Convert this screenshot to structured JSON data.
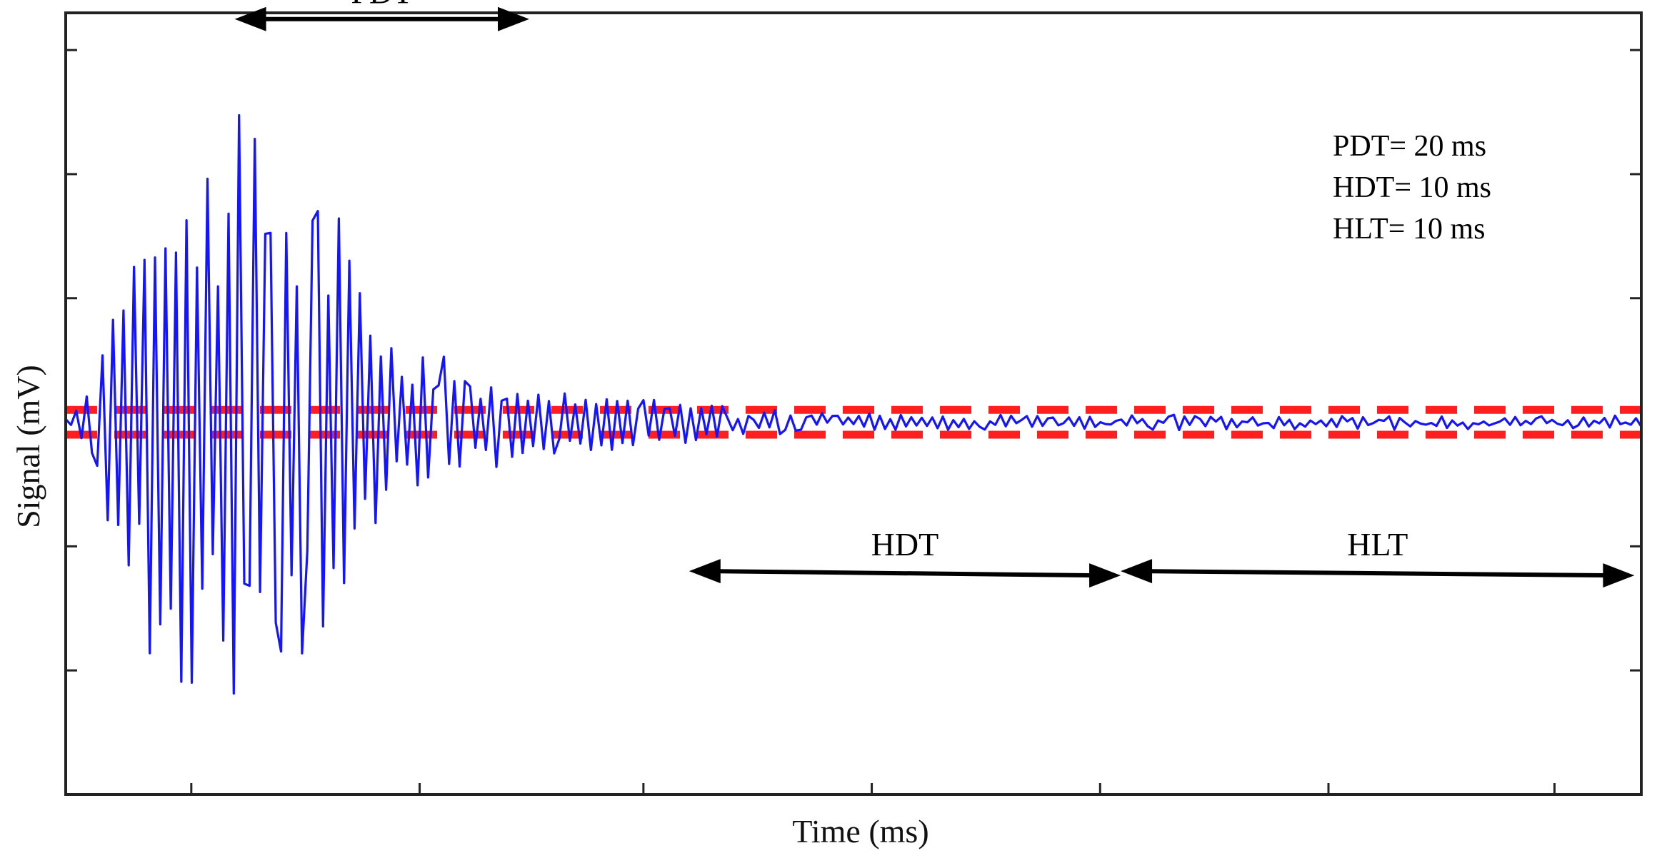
{
  "chart_data": {
    "type": "line",
    "title": "",
    "xlabel": "Time (ms)",
    "ylabel": "Signal (mV)",
    "xlim": [
      0,
      69
    ],
    "ylim": [
      -3,
      3.3
    ],
    "x_ticks": [
      5.5,
      15.5,
      25.3,
      35.3,
      45.3,
      55.3,
      65.2
    ],
    "y_ticks": [
      -2,
      -1,
      1,
      2,
      3
    ],
    "x_ticks_labeled": false,
    "y_ticks_labeled": false,
    "grid": false,
    "box": true,
    "colors": {
      "signal": "#1414ff",
      "threshold": "#ff1f1f",
      "annotation": "#000000"
    },
    "thresholds": [
      0.1,
      -0.1
    ],
    "signal_envelope": [
      {
        "x": 1.3,
        "amp": 0.35
      },
      {
        "x": 2.8,
        "amp": 1.7
      },
      {
        "x": 3.1,
        "amp": 1.6
      },
      {
        "x": 4.5,
        "amp": 2.4
      },
      {
        "x": 5.8,
        "amp": 2.1
      },
      {
        "x": 7.2,
        "amp": 2.2
      },
      {
        "x": 8.0,
        "amp": 3.0
      },
      {
        "x": 8.5,
        "amp": 2.4
      },
      {
        "x": 9.5,
        "amp": 1.9
      },
      {
        "x": 10.2,
        "amp": 2.3
      },
      {
        "x": 11.2,
        "amp": 1.7
      },
      {
        "x": 12.0,
        "amp": 1.75
      },
      {
        "x": 12.7,
        "amp": 1.4
      },
      {
        "x": 13.5,
        "amp": 0.85
      },
      {
        "x": 14.5,
        "amp": 0.65
      },
      {
        "x": 15.5,
        "amp": 0.55
      },
      {
        "x": 16.5,
        "amp": 0.65
      },
      {
        "x": 18.5,
        "amp": 0.35
      },
      {
        "x": 21.0,
        "amp": 0.25
      },
      {
        "x": 25.0,
        "amp": 0.2
      },
      {
        "x": 29.0,
        "amp": 0.1
      },
      {
        "x": 35.0,
        "amp": 0.06
      },
      {
        "x": 45.0,
        "amp": 0.04
      },
      {
        "x": 69.0,
        "amp": 0.03
      }
    ],
    "annotations": [
      {
        "label": "PDT",
        "x_start": 7.4,
        "x_end": 20.3,
        "y": 3.25,
        "arrowheads": "both"
      },
      {
        "label": "HDT",
        "x_start": 27.3,
        "x_end": 46.2,
        "y": -1.2,
        "arrowheads": "both"
      },
      {
        "label": "HLT",
        "x_start": 46.2,
        "x_end": 68.7,
        "y": -1.2,
        "arrowheads": "both"
      }
    ],
    "parameters": [
      "PDT= 20 ms",
      "HDT= 10 ms",
      "HLT= 10 ms"
    ]
  }
}
